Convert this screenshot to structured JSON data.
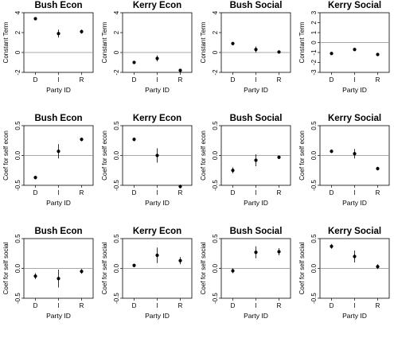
{
  "chart_data": [
    {
      "type": "scatter",
      "title": "Bush Econ",
      "xlabel": "Party ID",
      "ylabel": "Constant Term",
      "categories": [
        "D",
        "I",
        "R"
      ],
      "ylim": [
        -2,
        4
      ],
      "yticks": [
        -2,
        0,
        2,
        4
      ],
      "refline": 0,
      "values": [
        3.4,
        1.9,
        2.1
      ],
      "ci": [
        [
          3.3,
          3.5
        ],
        [
          1.5,
          2.3
        ],
        [
          1.9,
          2.3
        ]
      ]
    },
    {
      "type": "scatter",
      "title": "Kerry Econ",
      "xlabel": "Party ID",
      "ylabel": "Constant Term",
      "categories": [
        "D",
        "I",
        "R"
      ],
      "ylim": [
        -2,
        4
      ],
      "yticks": [
        -2,
        0,
        2,
        4
      ],
      "refline": 0,
      "values": [
        -1.0,
        -0.6,
        -1.8
      ],
      "ci": [
        [
          -1.1,
          -0.9
        ],
        [
          -0.9,
          -0.3
        ],
        [
          -1.9,
          -1.7
        ]
      ]
    },
    {
      "type": "scatter",
      "title": "Bush Social",
      "xlabel": "Party ID",
      "ylabel": "Constant Term",
      "categories": [
        "D",
        "I",
        "R"
      ],
      "ylim": [
        -2,
        4
      ],
      "yticks": [
        -2,
        0,
        2,
        4
      ],
      "refline": 0,
      "values": [
        0.9,
        0.3,
        0.05
      ],
      "ci": [
        [
          0.8,
          1.0
        ],
        [
          0.0,
          0.6
        ],
        [
          -0.05,
          0.15
        ]
      ]
    },
    {
      "type": "scatter",
      "title": "Kerry Social",
      "xlabel": "Party ID",
      "ylabel": "Constant Term",
      "categories": [
        "D",
        "I",
        "R"
      ],
      "ylim": [
        -3,
        3
      ],
      "yticks": [
        -3,
        -2,
        -1,
        0,
        1,
        2,
        3
      ],
      "refline": 0,
      "values": [
        -1.1,
        -0.7,
        -1.2
      ],
      "ci": [
        [
          -1.2,
          -1.0
        ],
        [
          -0.85,
          -0.55
        ],
        [
          -1.3,
          -1.1
        ]
      ]
    },
    {
      "type": "scatter",
      "title": "Bush Econ",
      "xlabel": "Party ID",
      "ylabel": "Coef for self econ",
      "categories": [
        "D",
        "I",
        "R"
      ],
      "ylim": [
        -0.5,
        0.5
      ],
      "yticks": [
        -0.5,
        0.0,
        0.5
      ],
      "refline": 0,
      "values": [
        -0.37,
        0.07,
        0.27
      ],
      "ci": [
        [
          -0.4,
          -0.34
        ],
        [
          -0.05,
          0.19
        ],
        [
          0.24,
          0.3
        ]
      ]
    },
    {
      "type": "scatter",
      "title": "Kerry Econ",
      "xlabel": "Party ID",
      "ylabel": "Coef for self econ",
      "categories": [
        "D",
        "I",
        "R"
      ],
      "ylim": [
        -0.5,
        0.5
      ],
      "yticks": [
        -0.5,
        0.0,
        0.5
      ],
      "refline": 0,
      "values": [
        0.27,
        0.0,
        -0.52
      ],
      "ci": [
        [
          0.24,
          0.3
        ],
        [
          -0.12,
          0.12
        ],
        [
          -0.55,
          -0.49
        ]
      ]
    },
    {
      "type": "scatter",
      "title": "Bush Social",
      "xlabel": "Party ID",
      "ylabel": "Coef for self econ",
      "categories": [
        "D",
        "I",
        "R"
      ],
      "ylim": [
        -0.5,
        0.5
      ],
      "yticks": [
        -0.5,
        0.0,
        0.5
      ],
      "refline": 0,
      "values": [
        -0.25,
        -0.08,
        -0.03
      ],
      "ci": [
        [
          -0.3,
          -0.2
        ],
        [
          -0.18,
          0.02
        ],
        [
          -0.06,
          0.0
        ]
      ]
    },
    {
      "type": "scatter",
      "title": "Kerry Social",
      "xlabel": "Party ID",
      "ylabel": "Coef for self econ",
      "categories": [
        "D",
        "I",
        "R"
      ],
      "ylim": [
        -0.5,
        0.5
      ],
      "yticks": [
        -0.5,
        0.0,
        0.5
      ],
      "refline": 0,
      "values": [
        0.07,
        0.03,
        -0.22
      ],
      "ci": [
        [
          0.04,
          0.1
        ],
        [
          -0.05,
          0.11
        ],
        [
          -0.25,
          -0.19
        ]
      ]
    },
    {
      "type": "scatter",
      "title": "Bush Econ",
      "xlabel": "Party ID",
      "ylabel": "Coef for self social",
      "categories": [
        "D",
        "I",
        "R"
      ],
      "ylim": [
        -0.5,
        0.5
      ],
      "yticks": [
        -0.5,
        0.0,
        0.5
      ],
      "refline": 0,
      "values": [
        -0.13,
        -0.17,
        -0.05
      ],
      "ci": [
        [
          -0.18,
          -0.08
        ],
        [
          -0.32,
          -0.02
        ],
        [
          -0.09,
          -0.01
        ]
      ]
    },
    {
      "type": "scatter",
      "title": "Kerry Econ",
      "xlabel": "Party ID",
      "ylabel": "Coef for self social",
      "categories": [
        "D",
        "I",
        "R"
      ],
      "ylim": [
        -0.5,
        0.5
      ],
      "yticks": [
        -0.5,
        0.0,
        0.5
      ],
      "refline": 0,
      "values": [
        0.05,
        0.22,
        0.13
      ],
      "ci": [
        [
          0.02,
          0.08
        ],
        [
          0.09,
          0.35
        ],
        [
          0.07,
          0.19
        ]
      ]
    },
    {
      "type": "scatter",
      "title": "Bush Social",
      "xlabel": "Party ID",
      "ylabel": "Coef for self social",
      "categories": [
        "D",
        "I",
        "R"
      ],
      "ylim": [
        -0.5,
        0.5
      ],
      "yticks": [
        -0.5,
        0.0,
        0.5
      ],
      "refline": 0,
      "values": [
        -0.04,
        0.27,
        0.28
      ],
      "ci": [
        [
          -0.08,
          0.0
        ],
        [
          0.17,
          0.37
        ],
        [
          0.22,
          0.34
        ]
      ]
    },
    {
      "type": "scatter",
      "title": "Kerry Social",
      "xlabel": "Party ID",
      "ylabel": "Coef for self social",
      "categories": [
        "D",
        "I",
        "R"
      ],
      "ylim": [
        -0.5,
        0.5
      ],
      "yticks": [
        -0.5,
        0.0,
        0.5
      ],
      "refline": 0,
      "values": [
        0.37,
        0.2,
        0.03
      ],
      "ci": [
        [
          0.33,
          0.41
        ],
        [
          0.1,
          0.3
        ],
        [
          -0.01,
          0.07
        ]
      ]
    }
  ]
}
